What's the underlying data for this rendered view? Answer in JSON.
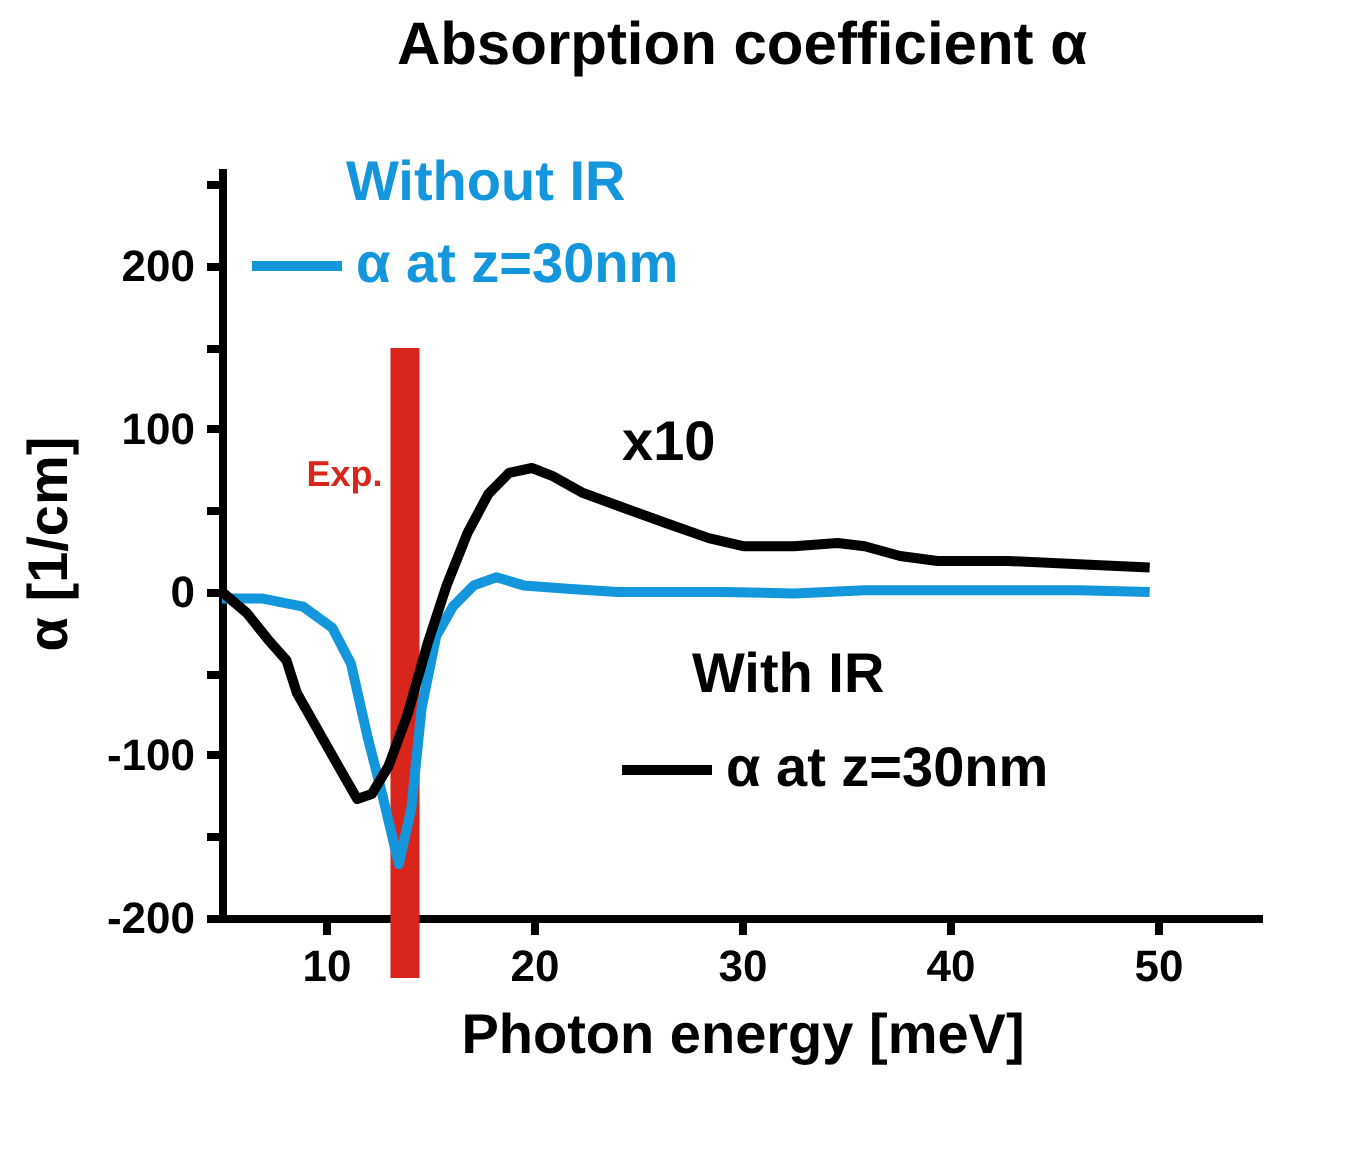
{
  "chart_data": {
    "type": "line",
    "title": "Absorption coefficient α",
    "xlabel": "Photon energy [meV]",
    "ylabel": "α [1/cm]",
    "xlim": [
      5,
      55
    ],
    "xticks": [
      10,
      20,
      30,
      40,
      50
    ],
    "ylim": [
      -200,
      260
    ],
    "yticks": [
      -200,
      {
        "value": -150,
        "label": null
      },
      -100,
      {
        "value": -50,
        "label": null
      },
      0,
      {
        "value": 50,
        "label": null
      },
      100,
      {
        "value": 150,
        "label": null
      },
      200,
      {
        "value": 250,
        "label": null
      }
    ],
    "grid": false,
    "legend": "top left",
    "line_style": "solid",
    "marker": "none",
    "series": [
      {
        "name": "α at z=30nm",
        "color": "#1496dc",
        "x": [
          5,
          6.9,
          8.9,
          10.3,
          11.2,
          12,
          12.7,
          13.5,
          14.1,
          14.6,
          15.3,
          16.1,
          17.1,
          18.2,
          19.5,
          21.6,
          24,
          29.1,
          32.5,
          35.9,
          39.4,
          42.8,
          46.2,
          49.6
        ],
        "values": [
          -4,
          -4,
          -9,
          -22,
          -44,
          -89,
          -124,
          -167,
          -133,
          -71,
          -27,
          -9,
          4,
          9,
          4,
          2,
          0,
          0,
          -1,
          1,
          1,
          1,
          1,
          0
        ]
      },
      {
        "name": "α at z=30nm",
        "color": "#000000",
        "x": [
          5,
          6.2,
          7.2,
          8.1,
          8.6,
          9.4,
          10.6,
          11.5,
          12.2,
          13,
          13.9,
          14.9,
          15.8,
          16.8,
          17.8,
          18.8,
          19.9,
          20.9,
          22.3,
          24,
          26.4,
          28.4,
          30.1,
          32.5,
          34.6,
          35.9,
          37.6,
          39.4,
          42.8,
          46.2,
          49.6
        ],
        "values": [
          0,
          -13,
          -29,
          -42,
          -62,
          -80,
          -107,
          -127,
          -124,
          -107,
          -76,
          -31,
          4,
          36,
          60,
          73,
          76,
          71,
          61,
          53,
          42,
          33,
          28,
          28,
          30,
          28,
          22,
          19,
          19,
          17,
          15
        ]
      }
    ],
    "bands": [
      {
        "axis": "x",
        "from": 13.1,
        "to": 14.5,
        "label": "Exp.",
        "color": "#d9261c"
      }
    ],
    "annotations": [
      "Without IR",
      "With IR",
      "x10"
    ]
  }
}
